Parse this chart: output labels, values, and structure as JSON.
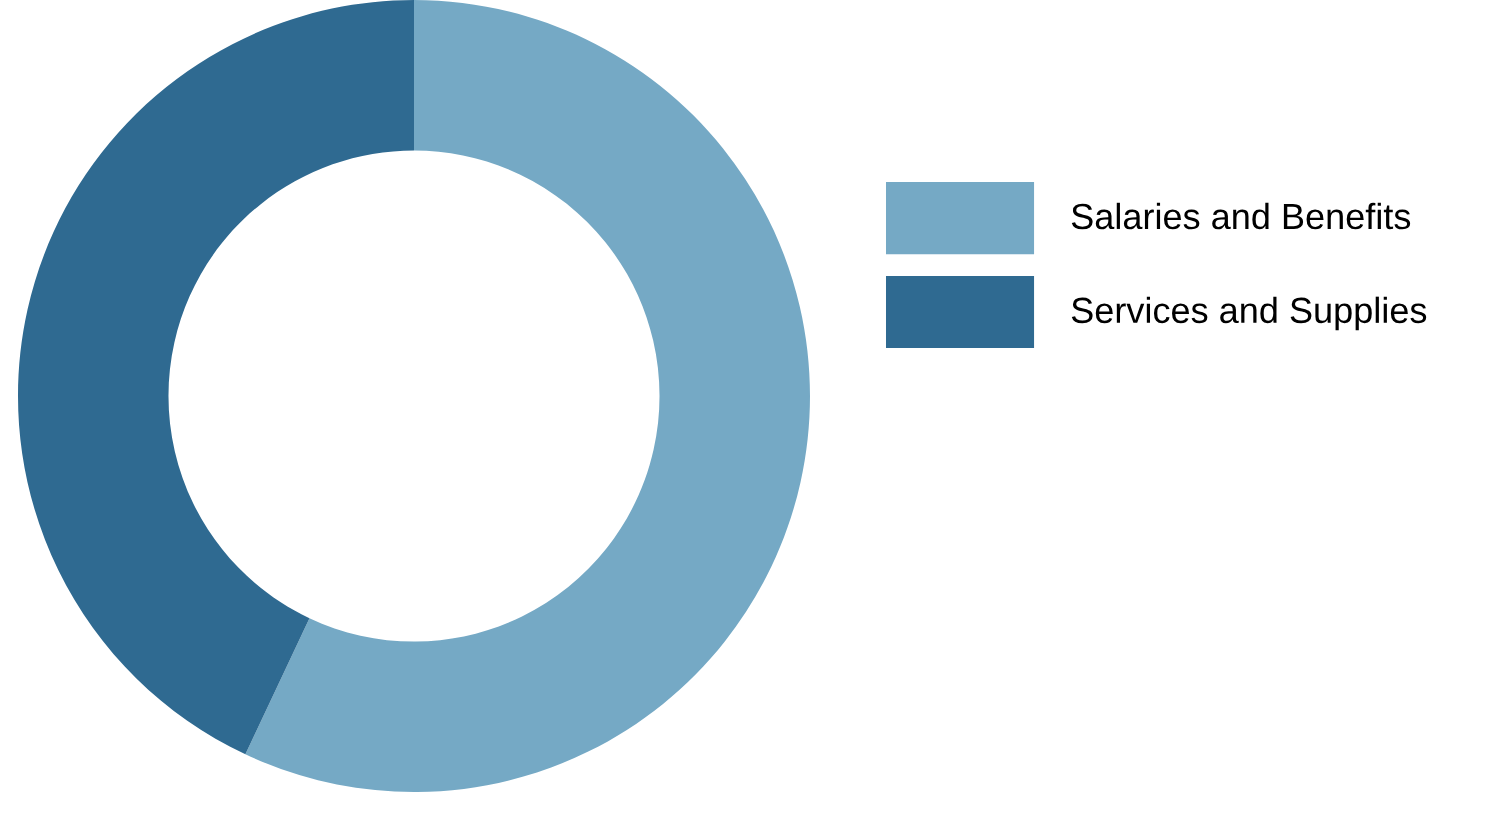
{
  "chart_data": {
    "type": "donut",
    "categories": [
      "Salaries and Benefits",
      "Services and Supplies"
    ],
    "values": [
      57,
      43
    ],
    "colors": [
      "#75a9c5",
      "#2f6a91"
    ],
    "legend": "right"
  }
}
